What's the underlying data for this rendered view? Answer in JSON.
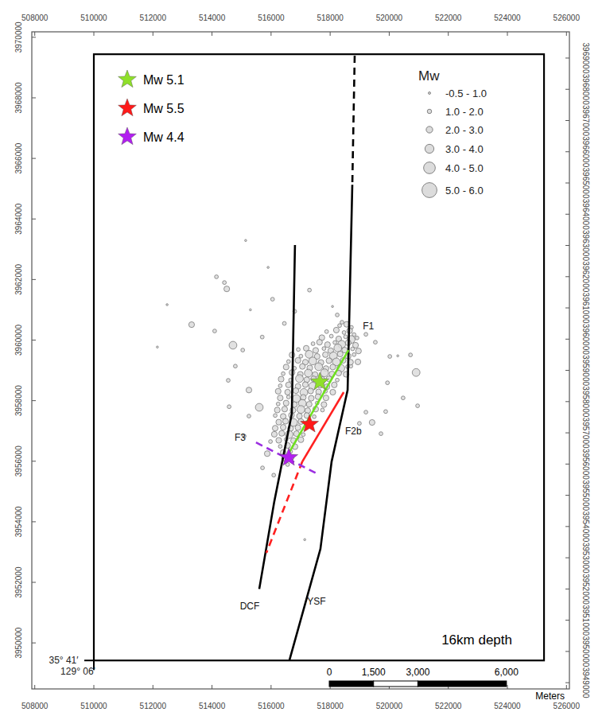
{
  "chart_data": {
    "type": "map",
    "xlim": [
      507900,
      526100
    ],
    "ylim": [
      3948480,
      3970180
    ],
    "y2lim": [
      3948800,
      3969840
    ],
    "xticks": [
      508000,
      510000,
      512000,
      514000,
      516000,
      518000,
      520000,
      522000,
      524000,
      526000
    ],
    "yticks": [
      3950000,
      3952000,
      3954000,
      3956000,
      3958000,
      3960000,
      3962000,
      3964000,
      3966000,
      3968000,
      3970000
    ],
    "y2ticks": [
      3949000,
      3950000,
      3951000,
      3952000,
      3953000,
      3954000,
      3955000,
      3956000,
      3957000,
      3958000,
      3959000,
      3960000,
      3961000,
      3962000,
      3963000,
      3964000,
      3965000,
      3966000,
      3967000,
      3968000,
      3969000
    ],
    "map_frame": {
      "x": [
        510000,
        525240
      ],
      "y": [
        3949420,
        3969440
      ]
    },
    "annotations": [
      "35° 41′",
      "129° 06′",
      "16km depth"
    ],
    "faults": [
      {
        "name": "DCF",
        "color": "#000000",
        "pieces": [
          {
            "line_style": "solid",
            "x": [
              516810,
              516700,
              516110,
              515600
            ],
            "y": [
              3963140,
              3957570,
              3954670,
              3951780
            ]
          }
        ]
      },
      {
        "name": "YSF",
        "color": "#000000",
        "pieces": [
          {
            "line_style": "dashed",
            "x": [
              518830,
              518750
            ],
            "y": [
              3969390,
              3965130
            ]
          },
          {
            "line_style": "solid",
            "x": [
              518750,
              518590,
              518050,
              517670,
              516620
            ],
            "y": [
              3965130,
              3958350,
              3955990,
              3953100,
              3949420
            ]
          }
        ]
      },
      {
        "name": "F1",
        "color": "#6fe021",
        "pieces": [
          {
            "line_style": "solid",
            "x": [
              518620,
              516540
            ],
            "y": [
              3959670,
              3956170
            ]
          }
        ]
      },
      {
        "name": "F2b",
        "color": "#ff2020",
        "pieces": [
          {
            "line_style": "solid",
            "x": [
              518460,
              517060
            ],
            "y": [
              3958280,
              3955990
            ]
          },
          {
            "line_style": "dashed",
            "x": [
              517060,
              515840
            ],
            "y": [
              3955990,
              3952970
            ]
          }
        ]
      },
      {
        "name": "F3",
        "color": "#9b2ee0",
        "pieces": [
          {
            "line_style": "dashed",
            "x": [
              515490,
              517590
            ],
            "y": [
              3956620,
              3955570
            ]
          }
        ]
      }
    ],
    "mainshocks": [
      {
        "name": "Mw 5.1",
        "color": "#8fe02a",
        "marker": "star",
        "x": 517650,
        "y": 3958620
      },
      {
        "name": "Mw 5.5",
        "color": "#ff1a1a",
        "marker": "star",
        "x": 517300,
        "y": 3957220
      },
      {
        "name": "Mw 4.4",
        "color": "#b21ff0",
        "marker": "star",
        "x": 516600,
        "y": 3956120
      }
    ],
    "earthquakes": {
      "title": "Mw",
      "classes": [
        {
          "label": "-0.5 - 1.0",
          "min": -0.5,
          "max": 1.0
        },
        {
          "label": "1.0 - 2.0",
          "min": 1.0,
          "max": 2.0
        },
        {
          "label": "2.0 - 3.0",
          "min": 2.0,
          "max": 3.0
        },
        {
          "label": "3.0 - 4.0",
          "min": 3.0,
          "max": 4.0
        },
        {
          "label": "4.0 - 5.0",
          "min": 4.0,
          "max": 5.0
        },
        {
          "label": "5.0 - 6.0",
          "min": 5.0,
          "max": 6.0
        }
      ],
      "points": [
        [
          515140,
          3963290,
          0.8
        ],
        [
          514150,
          3962090,
          1.5
        ],
        [
          514420,
          3961900,
          1.8
        ],
        [
          514500,
          3961690,
          2.5
        ],
        [
          512480,
          3961170,
          0.5
        ],
        [
          513310,
          3960510,
          2.6
        ],
        [
          514090,
          3960300,
          1.6
        ],
        [
          512150,
          3959770,
          0.5
        ],
        [
          514710,
          3959830,
          3.2
        ],
        [
          515040,
          3959670,
          1.7
        ],
        [
          514790,
          3959140,
          1.9
        ],
        [
          514550,
          3958670,
          1.4
        ],
        [
          515250,
          3958350,
          2.1
        ],
        [
          514580,
          3957800,
          1.3
        ],
        [
          515600,
          3957780,
          3.1
        ],
        [
          515250,
          3957490,
          1.6
        ],
        [
          515090,
          3956830,
          1.5
        ],
        [
          515980,
          3956650,
          1.8
        ],
        [
          515710,
          3955780,
          1.2
        ],
        [
          515870,
          3956250,
          2.2
        ],
        [
          517140,
          3953410,
          0.6
        ],
        [
          516090,
          3955540,
          1.9
        ],
        [
          519210,
          3960190,
          1.6
        ],
        [
          519530,
          3959930,
          1.4
        ],
        [
          520020,
          3959460,
          1.8
        ],
        [
          520290,
          3959480,
          0.9
        ],
        [
          520720,
          3959510,
          1.5
        ],
        [
          520910,
          3958930,
          3.3
        ],
        [
          519940,
          3958590,
          1.7
        ],
        [
          520470,
          3958090,
          1.4
        ],
        [
          519880,
          3957640,
          1.9
        ],
        [
          520960,
          3957830,
          1.6
        ],
        [
          519420,
          3957280,
          2.0
        ],
        [
          518990,
          3957250,
          1.5
        ],
        [
          519720,
          3956910,
          1.4
        ],
        [
          519210,
          3957620,
          1.8
        ],
        [
          518940,
          3959280,
          2.3
        ],
        [
          518700,
          3959140,
          1.9
        ],
        [
          518080,
          3961110,
          0.9
        ],
        [
          518240,
          3960830,
          1.6
        ],
        [
          518400,
          3960590,
          1.3
        ],
        [
          516050,
          3961350,
          1.1
        ],
        [
          516800,
          3960950,
          1.3
        ],
        [
          516450,
          3960550,
          1.7
        ],
        [
          515700,
          3960100,
          1.4
        ],
        [
          515300,
          3961000,
          0.7
        ],
        [
          515900,
          3962400,
          0.8
        ],
        [
          517300,
          3961650,
          1.1
        ],
        [
          518320,
          3960480,
          1.5
        ],
        [
          518560,
          3960520,
          2.2
        ],
        [
          518720,
          3960420,
          1.2
        ],
        [
          517880,
          3960280,
          1.8
        ],
        [
          518210,
          3960330,
          2.4
        ],
        [
          518470,
          3960250,
          1.6
        ],
        [
          518660,
          3960310,
          2.9
        ],
        [
          518810,
          3960180,
          1.4
        ],
        [
          517720,
          3960080,
          2.0
        ],
        [
          518040,
          3960130,
          1.3
        ],
        [
          518290,
          3960040,
          2.6
        ],
        [
          518520,
          3960110,
          1.9
        ],
        [
          518710,
          3960020,
          3.1
        ],
        [
          518910,
          3960070,
          1.7
        ],
        [
          517420,
          3959880,
          1.6
        ],
        [
          517640,
          3959930,
          2.3
        ],
        [
          517910,
          3959850,
          2.8
        ],
        [
          518160,
          3959920,
          1.5
        ],
        [
          518390,
          3959860,
          3.4
        ],
        [
          518610,
          3959910,
          2.1
        ],
        [
          518860,
          3959830,
          2.5
        ],
        [
          516920,
          3959690,
          1.4
        ],
        [
          517190,
          3959730,
          2.2
        ],
        [
          517510,
          3959660,
          2.9
        ],
        [
          517790,
          3959720,
          1.8
        ],
        [
          518020,
          3959650,
          2.6
        ],
        [
          518260,
          3959740,
          3.0
        ],
        [
          518490,
          3959670,
          2.4
        ],
        [
          518760,
          3959710,
          1.9
        ],
        [
          518960,
          3959640,
          2.7
        ],
        [
          516710,
          3959510,
          2.1
        ],
        [
          517010,
          3959470,
          1.7
        ],
        [
          517290,
          3959530,
          3.2
        ],
        [
          517560,
          3959460,
          2.5
        ],
        [
          517840,
          3959520,
          2.0
        ],
        [
          518110,
          3959480,
          3.6
        ],
        [
          518340,
          3959540,
          2.3
        ],
        [
          518610,
          3959470,
          2.9
        ],
        [
          518810,
          3959520,
          1.6
        ],
        [
          516590,
          3959290,
          1.8
        ],
        [
          516910,
          3959330,
          2.6
        ],
        [
          517160,
          3959270,
          2.2
        ],
        [
          517410,
          3959310,
          3.3
        ],
        [
          517690,
          3959260,
          2.7
        ],
        [
          517960,
          3959320,
          2.1
        ],
        [
          518210,
          3959280,
          3.8
        ],
        [
          518440,
          3959330,
          2.5
        ],
        [
          518690,
          3959270,
          2.0
        ],
        [
          516510,
          3959110,
          2.3
        ],
        [
          516790,
          3959070,
          1.9
        ],
        [
          517060,
          3959130,
          2.8
        ],
        [
          517310,
          3959080,
          2.4
        ],
        [
          517610,
          3959120,
          3.5
        ],
        [
          517860,
          3959060,
          2.6
        ],
        [
          518090,
          3959110,
          2.2
        ],
        [
          518360,
          3959070,
          3.1
        ],
        [
          518590,
          3959120,
          1.8
        ],
        [
          516410,
          3958890,
          1.6
        ],
        [
          516710,
          3958930,
          2.7
        ],
        [
          516990,
          3958870,
          2.3
        ],
        [
          517260,
          3958910,
          3.0
        ],
        [
          517490,
          3958860,
          2.5
        ],
        [
          517810,
          3958920,
          3.7
        ],
        [
          518060,
          3958880,
          2.1
        ],
        [
          518290,
          3958910,
          2.6
        ],
        [
          518540,
          3958870,
          2.0
        ],
        [
          516340,
          3958710,
          2.2
        ],
        [
          516660,
          3958680,
          1.9
        ],
        [
          516960,
          3958730,
          3.2
        ],
        [
          517210,
          3958690,
          2.6
        ],
        [
          517440,
          3958720,
          2.0
        ],
        [
          517710,
          3958670,
          3.4
        ],
        [
          517960,
          3958720,
          2.4
        ],
        [
          518240,
          3958680,
          1.8
        ],
        [
          516310,
          3958490,
          1.7
        ],
        [
          516590,
          3958520,
          2.5
        ],
        [
          516910,
          3958470,
          2.9
        ],
        [
          517160,
          3958530,
          2.2
        ],
        [
          517410,
          3958480,
          3.9
        ],
        [
          517660,
          3958510,
          2.6
        ],
        [
          517890,
          3958460,
          2.1
        ],
        [
          518140,
          3958520,
          2.7
        ],
        [
          516240,
          3958310,
          2.0
        ],
        [
          516560,
          3958280,
          2.8
        ],
        [
          516840,
          3958330,
          2.4
        ],
        [
          517110,
          3958270,
          3.1
        ],
        [
          517340,
          3958320,
          2.3
        ],
        [
          517610,
          3958290,
          2.9
        ],
        [
          517840,
          3958310,
          1.9
        ],
        [
          518090,
          3958280,
          2.2
        ],
        [
          516310,
          3958090,
          2.4
        ],
        [
          516590,
          3958120,
          1.8
        ],
        [
          516860,
          3958070,
          3.3
        ],
        [
          517090,
          3958110,
          2.5
        ],
        [
          517360,
          3958080,
          2.0
        ],
        [
          517590,
          3958130,
          2.7
        ],
        [
          517860,
          3958090,
          2.1
        ],
        [
          516240,
          3957890,
          1.9
        ],
        [
          516510,
          3957920,
          2.6
        ],
        [
          516790,
          3957870,
          2.2
        ],
        [
          517060,
          3957910,
          3.0
        ],
        [
          517290,
          3957880,
          2.4
        ],
        [
          517560,
          3957920,
          1.8
        ],
        [
          517790,
          3957870,
          2.3
        ],
        [
          516210,
          3957690,
          2.1
        ],
        [
          516460,
          3957720,
          2.8
        ],
        [
          516740,
          3957680,
          2.3
        ],
        [
          517010,
          3957710,
          3.5
        ],
        [
          517240,
          3957670,
          2.0
        ],
        [
          517510,
          3957720,
          2.5
        ],
        [
          517740,
          3957690,
          1.7
        ],
        [
          516140,
          3957510,
          1.8
        ],
        [
          516410,
          3957480,
          2.4
        ],
        [
          516690,
          3957520,
          2.9
        ],
        [
          516960,
          3957490,
          2.2
        ],
        [
          517210,
          3957510,
          2.6
        ],
        [
          517460,
          3957470,
          1.9
        ],
        [
          516260,
          3957290,
          2.3
        ],
        [
          516490,
          3957320,
          2.0
        ],
        [
          516760,
          3957280,
          3.2
        ],
        [
          517010,
          3957310,
          2.4
        ],
        [
          517260,
          3957290,
          1.8
        ],
        [
          516140,
          3957090,
          2.6
        ],
        [
          516410,
          3957120,
          2.1
        ],
        [
          516660,
          3957080,
          2.7
        ],
        [
          516910,
          3957110,
          2.3
        ],
        [
          517140,
          3957090,
          1.6
        ],
        [
          516110,
          3956890,
          2.0
        ],
        [
          516360,
          3956920,
          2.5
        ],
        [
          516610,
          3956880,
          3.0
        ],
        [
          516860,
          3956910,
          2.2
        ],
        [
          517090,
          3956880,
          1.7
        ],
        [
          516260,
          3956690,
          2.4
        ],
        [
          516510,
          3956720,
          1.9
        ],
        [
          516760,
          3956680,
          2.8
        ],
        [
          517010,
          3956710,
          2.1
        ],
        [
          516310,
          3956490,
          1.8
        ],
        [
          516560,
          3956520,
          2.6
        ],
        [
          516810,
          3956480,
          2.0
        ],
        [
          516410,
          3956290,
          2.3
        ],
        [
          516660,
          3956320,
          1.7
        ],
        [
          516460,
          3956090,
          2.1
        ],
        [
          516710,
          3956110,
          1.6
        ],
        [
          516560,
          3955890,
          1.9
        ]
      ]
    },
    "scale_bar": {
      "ticks": [
        0,
        {
          "value": 1500,
          "label": "1,500"
        },
        {
          "value": 3000,
          "label": "3,000"
        },
        {
          "value": 6000,
          "label": "6,000"
        }
      ],
      "unit": "Meters"
    }
  }
}
